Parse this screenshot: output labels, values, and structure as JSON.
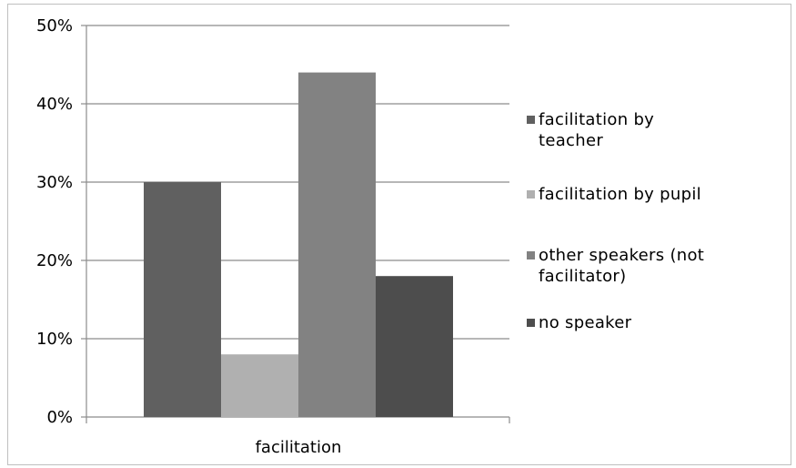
{
  "chart_data": {
    "type": "bar",
    "categories": [
      "facilitation"
    ],
    "series": [
      {
        "name": "facilitation by teacher",
        "values": [
          30
        ],
        "color": "#606060"
      },
      {
        "name": "facilitation by pupil",
        "values": [
          8
        ],
        "color": "#b0b0b0"
      },
      {
        "name": "other speakers (not facilitator)",
        "values": [
          44
        ],
        "color": "#828282"
      },
      {
        "name": "no speaker",
        "values": [
          18
        ],
        "color": "#4d4d4d"
      }
    ],
    "yticks": [
      "0%",
      "10%",
      "20%",
      "30%",
      "40%",
      "50%"
    ],
    "ylim": [
      0,
      50
    ],
    "grid": true,
    "legend_position": "right"
  }
}
